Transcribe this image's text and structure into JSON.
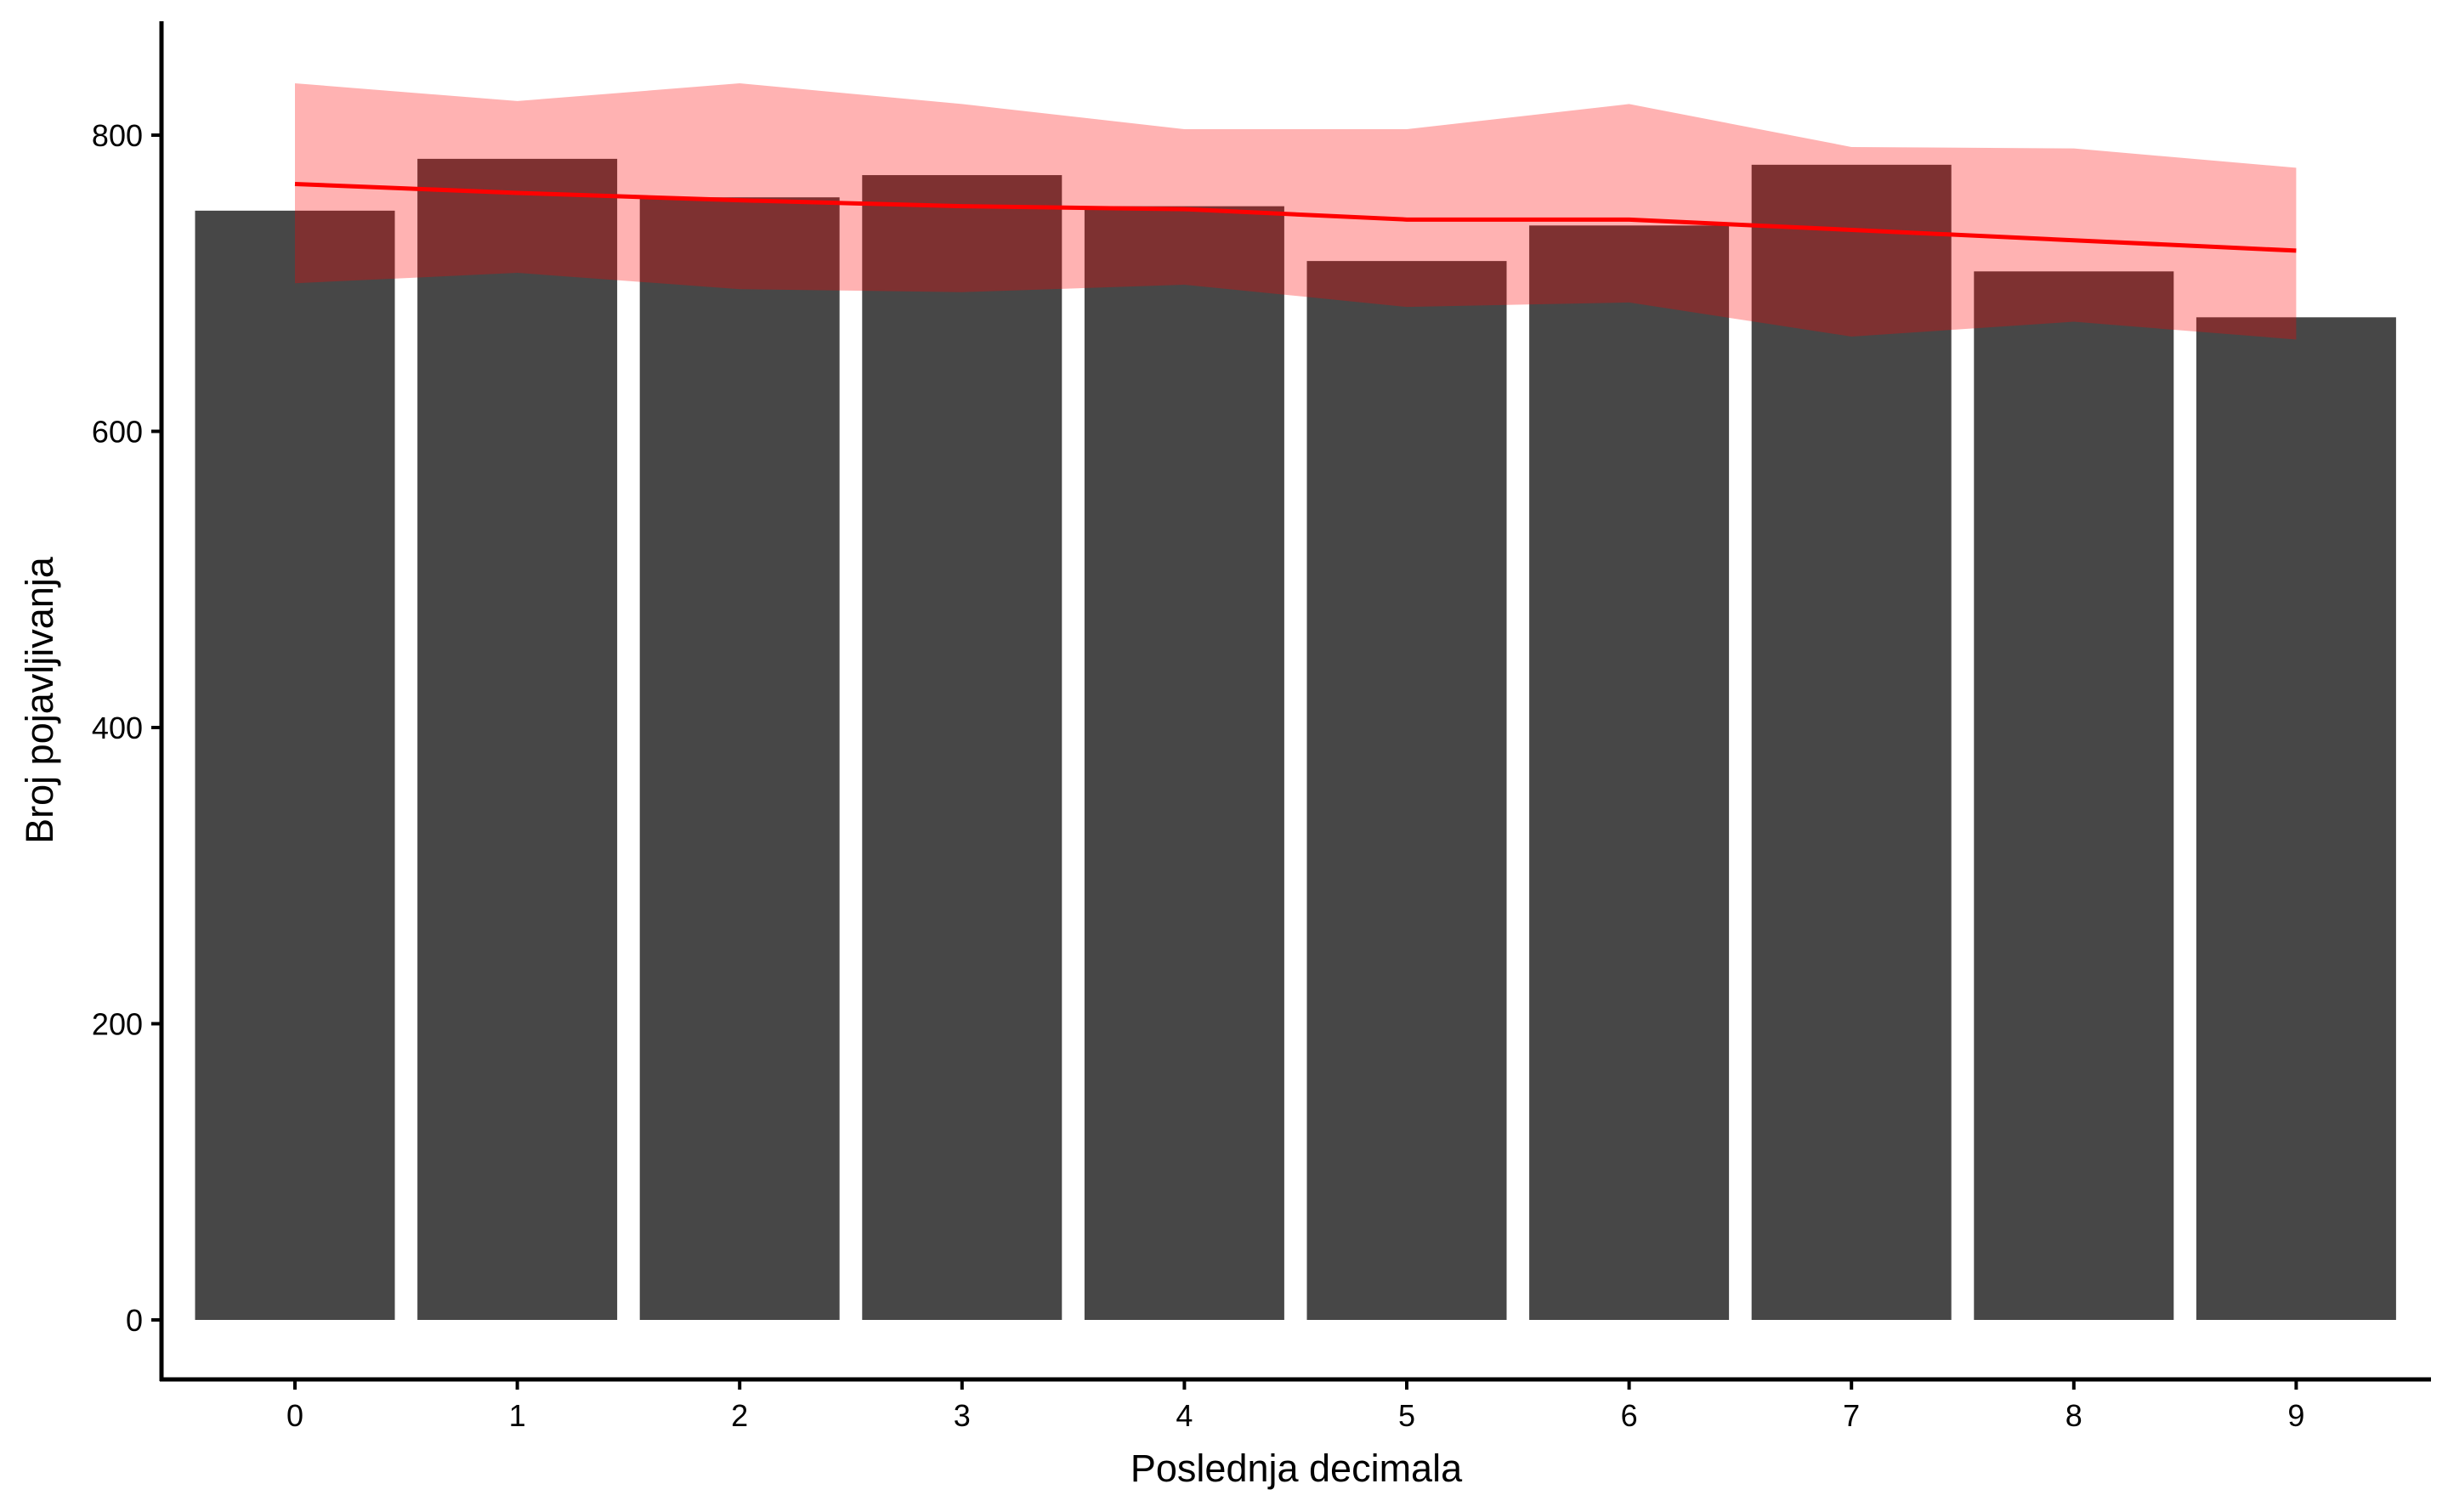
{
  "chart_data": {
    "type": "bar",
    "title": "",
    "xlabel": "Poslednja decimala",
    "ylabel": "Broj pojavljivanja",
    "categories": [
      "0",
      "1",
      "2",
      "3",
      "4",
      "5",
      "6",
      "7",
      "8",
      "9"
    ],
    "values": [
      749,
      784,
      758,
      773,
      752,
      715,
      739,
      780,
      708,
      677
    ],
    "ylim": [
      -40,
      880
    ],
    "yticks": [
      0,
      200,
      400,
      600,
      800
    ],
    "grid": false,
    "legend": "none",
    "overlay": {
      "type": "line-with-band",
      "x": [
        0,
        1,
        2,
        3,
        4,
        5,
        6,
        7,
        8,
        9
      ],
      "line": [
        767,
        761,
        756,
        752,
        750,
        743,
        743,
        736,
        729,
        722
      ],
      "band_upper": [
        835,
        823,
        835,
        821,
        804,
        804,
        821,
        792,
        791,
        778
      ],
      "band_lower": [
        700,
        707,
        696,
        694,
        699,
        684,
        687,
        664,
        674,
        662
      ]
    },
    "colors": {
      "bar": "#474747",
      "line": "#ff0000",
      "band": "#ff0000",
      "axis": "#000000"
    }
  }
}
